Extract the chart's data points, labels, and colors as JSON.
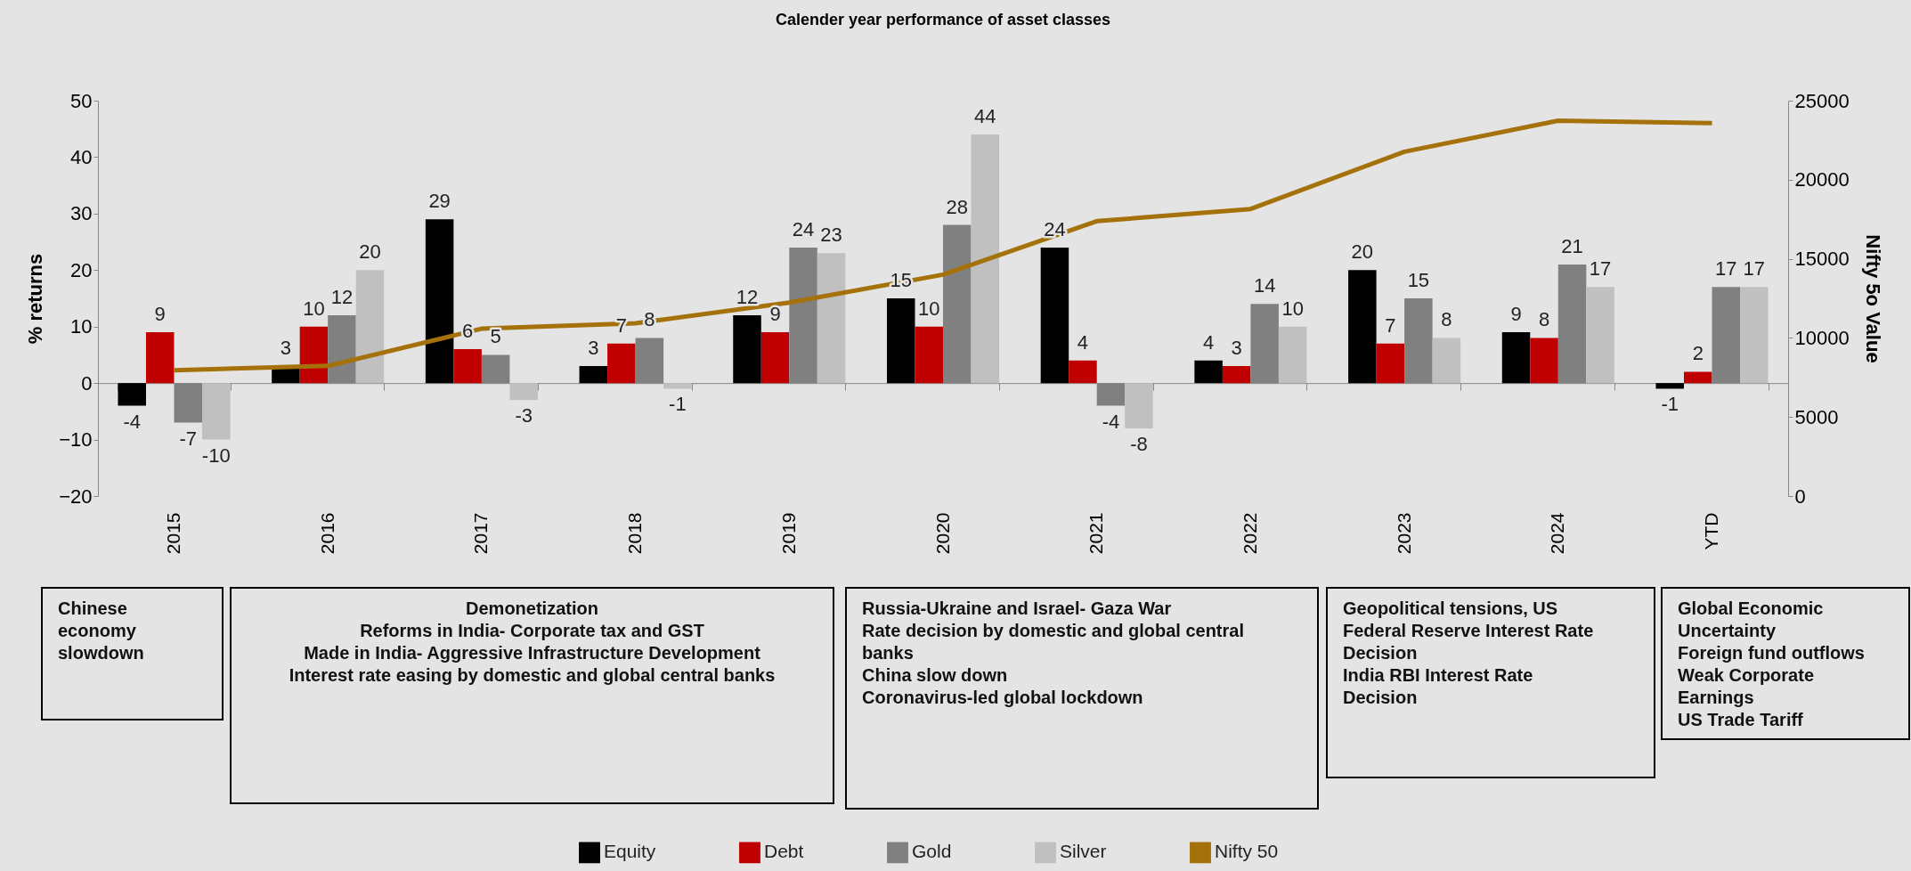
{
  "chart_data": {
    "type": "bar",
    "title": "Calender year performance of asset classes",
    "categories": [
      "2015",
      "2016",
      "2017",
      "2018",
      "2019",
      "2020",
      "2021",
      "2022",
      "2023",
      "2024",
      "YTD"
    ],
    "ylabel": "% returns",
    "y2label": "Nifty 5o Value",
    "ylim": [
      -20,
      50
    ],
    "yticks": [
      -20,
      -10,
      0,
      10,
      20,
      30,
      40,
      50
    ],
    "y2lim": [
      0,
      25000
    ],
    "y2ticks": [
      0,
      5000,
      10000,
      15000,
      20000,
      25000
    ],
    "series": [
      {
        "name": "Equity",
        "color": "#000000",
        "values": [
          -4,
          3,
          29,
          3,
          12,
          15,
          24,
          4,
          20,
          9,
          -1
        ],
        "value_labels": [
          "-4",
          "3",
          "29",
          "3",
          "12",
          "15",
          "24",
          "4",
          "20",
          "9",
          "-1"
        ]
      },
      {
        "name": "Debt",
        "color": "#c00000",
        "values": [
          9,
          10,
          6,
          7,
          9,
          10,
          4,
          3,
          7,
          8,
          2
        ],
        "value_labels": [
          "9",
          "10",
          "6",
          "7",
          "9",
          "10",
          "4",
          "3",
          "7",
          "8",
          "2"
        ]
      },
      {
        "name": "Gold",
        "color": "#808080",
        "values": [
          -7,
          12,
          5,
          8,
          24,
          28,
          -4,
          14,
          15,
          21,
          17
        ],
        "value_labels": [
          "-7",
          "12",
          "5",
          "8",
          "24",
          "28",
          "-4",
          "14",
          "15",
          "21",
          "17"
        ]
      },
      {
        "name": "Silver",
        "color": "#c0c0c0",
        "values": [
          -10,
          20,
          -3,
          -1,
          23,
          44,
          -8,
          10,
          8,
          17,
          17
        ],
        "value_labels": [
          "-10",
          "20",
          "-3",
          "-1",
          "23",
          "44",
          "-8",
          "10",
          "8",
          "17",
          "17"
        ]
      },
      {
        "name": "Nifty 50",
        "color": "#a5710a",
        "type": "line",
        "axis": "y2",
        "values": [
          7960,
          8230,
          10580,
          10920,
          12230,
          14000,
          17380,
          18150,
          21770,
          23730,
          23580
        ]
      }
    ],
    "legend": "bottom",
    "marker": "none",
    "line_style": "solid",
    "annotations": [
      "Chinese\neconomy\nslowdown",
      "Demonetization\nReforms in India- Corporate tax and GST\nMade in India- Aggressive Infrastructure Development\nInterest rate easing by domestic and global central banks",
      "Russia-Ukraine and Israel- Gaza War\n \nRate decision by domestic and global central\nbanks\n \nChina slow down\nCoronavirus-led global lockdown",
      "Geopolitical tensions, US\nFederal Reserve Interest Rate\nDecision\nIndia RBI Interest Rate\nDecision",
      "Global Economic\nUncertainty\nForeign fund outflows\nWeak Corporate\nEarnings\nUS Trade Tariff"
    ]
  }
}
